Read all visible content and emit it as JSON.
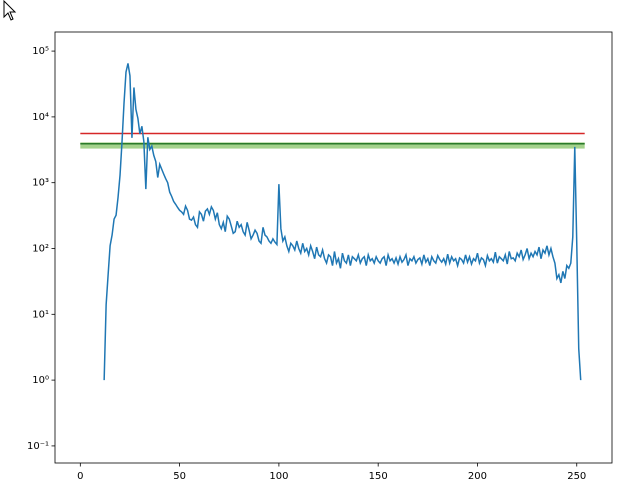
{
  "chart_data": {
    "type": "line",
    "log_y": true,
    "color": "#1f77b4",
    "x": [
      0,
      1,
      2,
      3,
      4,
      5,
      6,
      7,
      8,
      9,
      10,
      11,
      12,
      13,
      14,
      15,
      16,
      17,
      18,
      19,
      20,
      21,
      22,
      23,
      24,
      25,
      26,
      27,
      28,
      29,
      30,
      31,
      32,
      33,
      34,
      35,
      36,
      37,
      38,
      39,
      40,
      41,
      42,
      43,
      44,
      45,
      46,
      47,
      48,
      49,
      50,
      51,
      52,
      53,
      54,
      55,
      56,
      57,
      58,
      59,
      60,
      61,
      62,
      63,
      64,
      65,
      66,
      67,
      68,
      69,
      70,
      71,
      72,
      73,
      74,
      75,
      76,
      77,
      78,
      79,
      80,
      81,
      82,
      83,
      84,
      85,
      86,
      87,
      88,
      89,
      90,
      91,
      92,
      93,
      94,
      95,
      96,
      97,
      98,
      99,
      100,
      101,
      102,
      103,
      104,
      105,
      106,
      107,
      108,
      109,
      110,
      111,
      112,
      113,
      114,
      115,
      116,
      117,
      118,
      119,
      120,
      121,
      122,
      123,
      124,
      125,
      126,
      127,
      128,
      129,
      130,
      131,
      132,
      133,
      134,
      135,
      136,
      137,
      138,
      139,
      140,
      141,
      142,
      143,
      144,
      145,
      146,
      147,
      148,
      149,
      150,
      151,
      152,
      153,
      154,
      155,
      156,
      157,
      158,
      159,
      160,
      161,
      162,
      163,
      164,
      165,
      166,
      167,
      168,
      169,
      170,
      171,
      172,
      173,
      174,
      175,
      176,
      177,
      178,
      179,
      180,
      181,
      182,
      183,
      184,
      185,
      186,
      187,
      188,
      189,
      190,
      191,
      192,
      193,
      194,
      195,
      196,
      197,
      198,
      199,
      200,
      201,
      202,
      203,
      204,
      205,
      206,
      207,
      208,
      209,
      210,
      211,
      212,
      213,
      214,
      215,
      216,
      217,
      218,
      219,
      220,
      221,
      222,
      223,
      224,
      225,
      226,
      227,
      228,
      229,
      230,
      231,
      232,
      233,
      234,
      235,
      236,
      237,
      238,
      239,
      240,
      241,
      242,
      243,
      244,
      245,
      246,
      247,
      248,
      249,
      250,
      251,
      252,
      253,
      254,
      255
    ],
    "values": [
      null,
      null,
      null,
      null,
      null,
      null,
      null,
      null,
      null,
      null,
      null,
      null,
      1,
      14,
      40,
      110,
      160,
      280,
      320,
      600,
      1300,
      4200,
      16000,
      48000,
      65000,
      42000,
      4800,
      28000,
      13000,
      9500,
      5500,
      7200,
      4200,
      800,
      4900,
      3200,
      3600,
      2600,
      2100,
      1200,
      1900,
      1600,
      1350,
      1150,
      1000,
      720,
      620,
      520,
      470,
      420,
      380,
      360,
      330,
      440,
      380,
      280,
      270,
      300,
      230,
      210,
      360,
      330,
      260,
      370,
      400,
      330,
      430,
      380,
      280,
      350,
      230,
      200,
      250,
      180,
      310,
      280,
      220,
      170,
      180,
      260,
      210,
      230,
      180,
      160,
      250,
      190,
      140,
      160,
      190,
      170,
      130,
      120,
      210,
      160,
      150,
      130,
      120,
      140,
      125,
      115,
      950,
      200,
      130,
      150,
      110,
      90,
      120,
      110,
      95,
      130,
      100,
      85,
      120,
      90,
      100,
      80,
      110,
      90,
      70,
      105,
      80,
      75,
      95,
      70,
      60,
      80,
      75,
      55,
      90,
      60,
      70,
      50,
      85,
      65,
      60,
      80,
      55,
      75,
      70,
      65,
      80,
      60,
      70,
      75,
      55,
      80,
      65,
      70,
      60,
      75,
      65,
      60,
      70,
      75,
      55,
      80,
      65,
      70,
      60,
      72,
      58,
      75,
      62,
      68,
      80,
      55,
      70,
      65,
      75,
      60,
      68,
      72,
      58,
      80,
      62,
      70,
      55,
      75,
      65,
      60,
      78,
      68,
      62,
      70,
      58,
      82,
      60,
      75,
      65,
      70,
      55,
      72,
      68,
      60,
      80,
      62,
      75,
      58,
      70,
      65,
      85,
      60,
      72,
      68,
      55,
      78,
      65,
      70,
      62,
      88,
      60,
      75,
      70,
      65,
      80,
      58,
      90,
      70,
      72,
      65,
      85,
      75,
      95,
      68,
      80,
      100,
      70,
      85,
      75,
      90,
      80,
      105,
      70,
      95,
      85,
      110,
      80,
      100,
      75,
      60,
      35,
      40,
      30,
      45,
      35,
      55,
      50,
      60,
      150,
      3500,
      120,
      3,
      1,
      null,
      null,
      null
    ],
    "hlines": [
      {
        "value": 5600,
        "color": "#d62728",
        "xmin": 0,
        "xmax": 254
      },
      {
        "value": 3900,
        "color": "#2a7a2a",
        "xmin": 0,
        "xmax": 254
      }
    ],
    "bands": [
      {
        "range": [
          3300,
          4100
        ],
        "color": "#9acd7f",
        "xmin": 0,
        "xmax": 254
      }
    ],
    "xlim": [
      -12.75,
      267.75
    ],
    "ylim": [
      0.055,
      195000
    ],
    "xticks": [
      0,
      50,
      100,
      150,
      200,
      250
    ],
    "yticks": [
      {
        "value": 100000,
        "label": "10⁵"
      },
      {
        "value": 10000,
        "label": "10⁴"
      },
      {
        "value": 1000,
        "label": "10³"
      },
      {
        "value": 100,
        "label": "10²"
      },
      {
        "value": 10,
        "label": "10¹"
      },
      {
        "value": 1,
        "label": "10⁰"
      },
      {
        "value": 0.1,
        "label": "10⁻¹"
      }
    ]
  }
}
